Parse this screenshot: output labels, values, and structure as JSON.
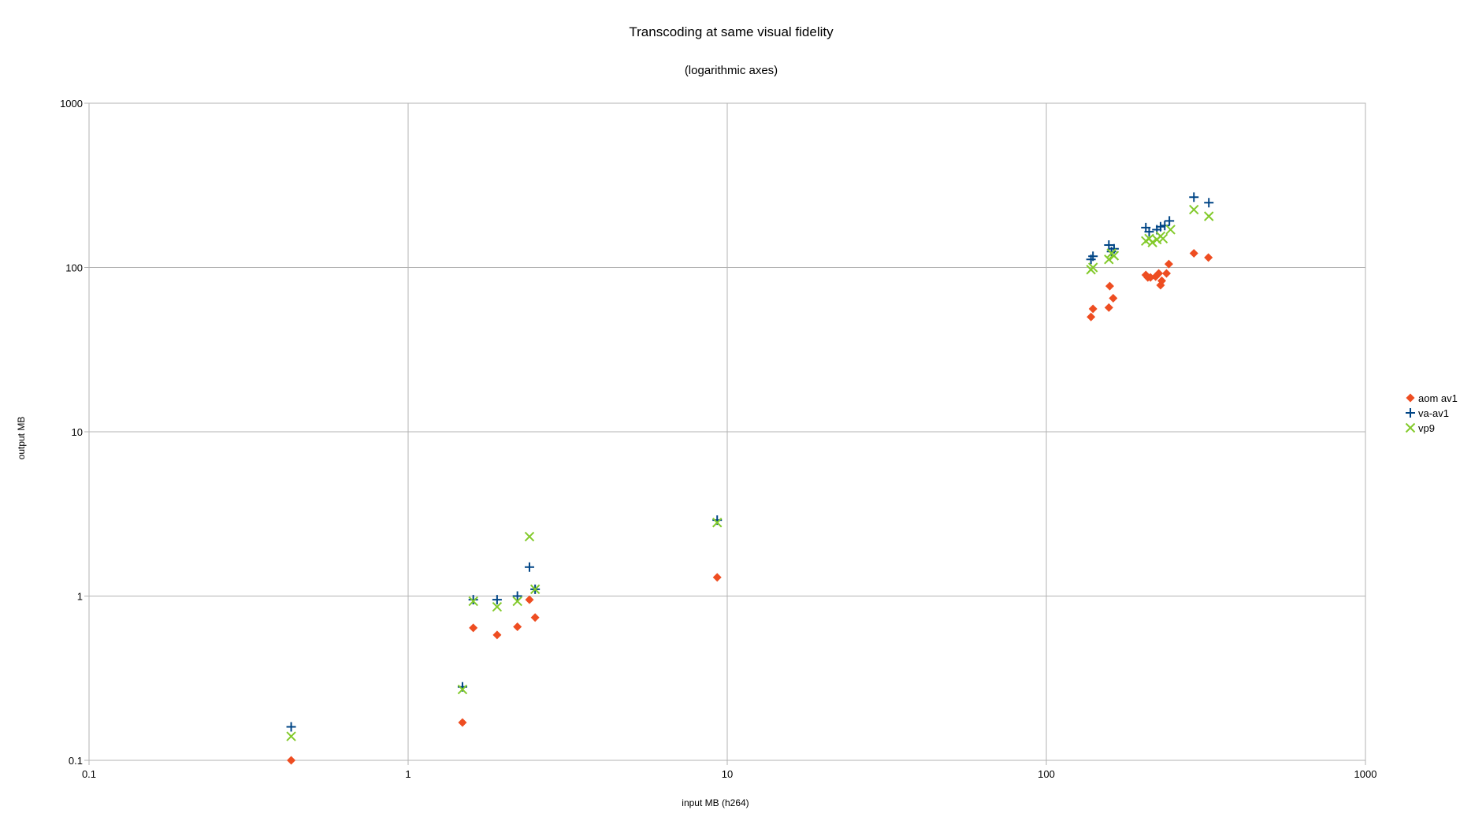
{
  "chart_data": {
    "type": "scatter",
    "title": "Transcoding at same visual fidelity",
    "subtitle": "(logarithmic axes)",
    "xlabel": "input MB (h264)",
    "ylabel": "output MB",
    "xscale": "log",
    "yscale": "log",
    "xlim": [
      0.1,
      1000
    ],
    "ylim": [
      0.1,
      1000
    ],
    "x_ticks": [
      "0.1",
      "1",
      "10",
      "100",
      "1000"
    ],
    "y_ticks": [
      "0.1",
      "1",
      "10",
      "100",
      "1000"
    ],
    "grid": true,
    "legend_position": "right",
    "series": [
      {
        "name": "aom av1",
        "marker": "diamond",
        "color": "#ee4d21",
        "points": [
          [
            0.43,
            0.1
          ],
          [
            1.48,
            0.17
          ],
          [
            1.6,
            0.64
          ],
          [
            1.9,
            0.58
          ],
          [
            2.2,
            0.65
          ],
          [
            2.4,
            0.95
          ],
          [
            2.5,
            0.74
          ],
          [
            9.3,
            1.3
          ],
          [
            138,
            50
          ],
          [
            140,
            56
          ],
          [
            157,
            57
          ],
          [
            158,
            77
          ],
          [
            162,
            65
          ],
          [
            205,
            90
          ],
          [
            208,
            87
          ],
          [
            212,
            87
          ],
          [
            220,
            88
          ],
          [
            225,
            92
          ],
          [
            228,
            78
          ],
          [
            230,
            83
          ],
          [
            238,
            92
          ],
          [
            242,
            105
          ],
          [
            290,
            122
          ],
          [
            322,
            115
          ]
        ]
      },
      {
        "name": "va-av1",
        "marker": "plus",
        "color": "#004586",
        "points": [
          [
            0.43,
            0.16
          ],
          [
            1.48,
            0.28
          ],
          [
            1.6,
            0.95
          ],
          [
            1.9,
            0.95
          ],
          [
            2.2,
            1.0
          ],
          [
            2.4,
            1.5
          ],
          [
            2.5,
            1.1
          ],
          [
            9.3,
            2.9
          ],
          [
            138,
            112
          ],
          [
            140,
            117
          ],
          [
            157,
            137
          ],
          [
            160,
            125
          ],
          [
            163,
            130
          ],
          [
            205,
            175
          ],
          [
            210,
            165
          ],
          [
            222,
            170
          ],
          [
            228,
            177
          ],
          [
            235,
            180
          ],
          [
            243,
            192
          ],
          [
            290,
            268
          ],
          [
            323,
            248
          ]
        ]
      },
      {
        "name": "vp9",
        "marker": "x",
        "color": "#83ca2c",
        "points": [
          [
            0.43,
            0.14
          ],
          [
            1.48,
            0.27
          ],
          [
            1.6,
            0.93
          ],
          [
            1.9,
            0.86
          ],
          [
            2.2,
            0.93
          ],
          [
            2.4,
            2.3
          ],
          [
            2.5,
            1.1
          ],
          [
            9.3,
            2.8
          ],
          [
            138,
            97
          ],
          [
            140,
            100
          ],
          [
            157,
            112
          ],
          [
            160,
            122
          ],
          [
            163,
            118
          ],
          [
            205,
            145
          ],
          [
            210,
            150
          ],
          [
            215,
            142
          ],
          [
            222,
            148
          ],
          [
            228,
            155
          ],
          [
            232,
            150
          ],
          [
            245,
            170
          ],
          [
            290,
            225
          ],
          [
            323,
            205
          ]
        ]
      }
    ]
  }
}
